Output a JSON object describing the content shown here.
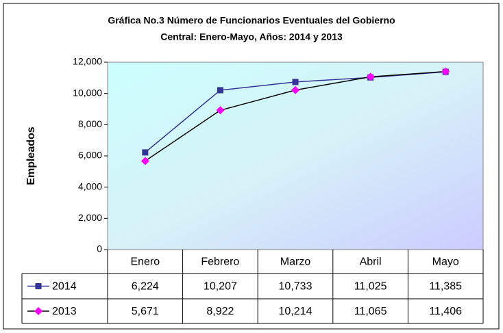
{
  "chart_data": {
    "type": "line",
    "title": [
      "Gráfica No.3 Número de Funcionarios Eventuales del Gobierno",
      "Central: Enero-Mayo, Años: 2014 y 2013"
    ],
    "y_label": "Empleados",
    "categories": [
      "Enero",
      "Febrero",
      "Marzo",
      "Abril",
      "Mayo"
    ],
    "series": [
      {
        "name": "2014",
        "color": "#333399",
        "marker": "square",
        "marker_color": "#333399",
        "values": [
          6224,
          10207,
          10733,
          11025,
          11385
        ],
        "value_labels": [
          "6,224",
          "10,207",
          "10,733",
          "11,025",
          "11,385"
        ]
      },
      {
        "name": "2013",
        "color": "#000000",
        "marker": "diamond",
        "marker_color": "#ff00ff",
        "values": [
          5671,
          8922,
          10214,
          11065,
          11406
        ],
        "value_labels": [
          "5,671",
          "8,922",
          "10,214",
          "11,065",
          "11,406"
        ]
      }
    ],
    "ylim": [
      0,
      12000
    ],
    "yticks": [
      0,
      {
        "value": 2000,
        "label": "2,000"
      },
      {
        "value": 4000,
        "label": "4,000"
      },
      {
        "value": 6000,
        "label": "6,000"
      },
      {
        "value": 8000,
        "label": "8,000"
      },
      {
        "value": 10000,
        "label": "10,000"
      },
      {
        "value": 12000,
        "label": "12,000"
      }
    ],
    "grid": false,
    "data_table": true
  }
}
